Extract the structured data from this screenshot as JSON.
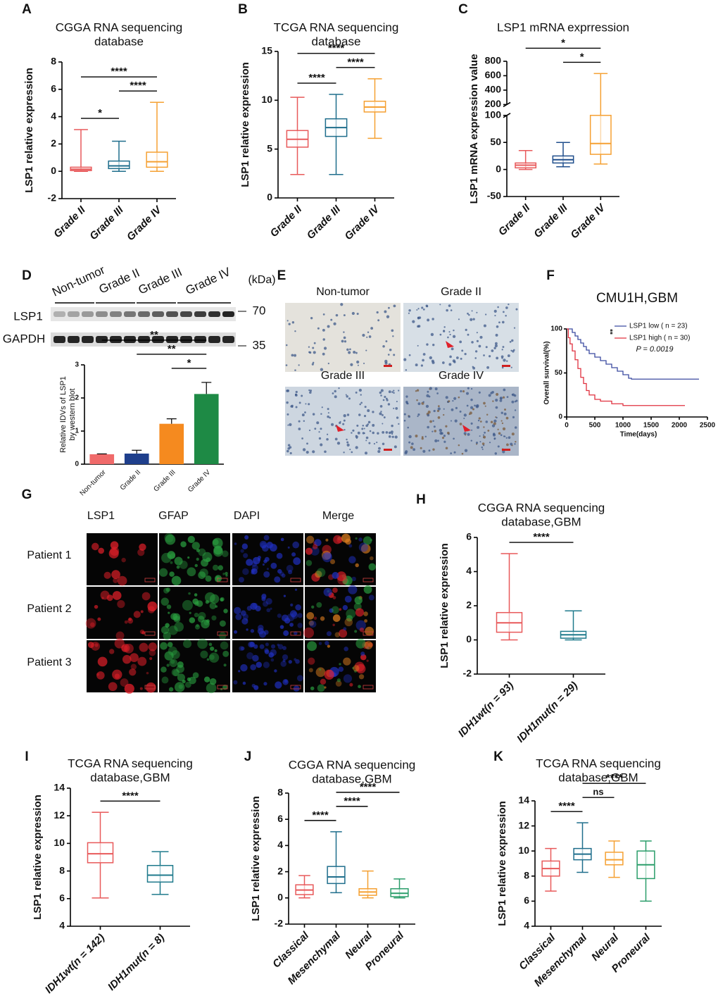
{
  "chart_data": [
    {
      "panel": "A",
      "type": "box",
      "title": [
        "CGGA RNA sequencing",
        "database"
      ],
      "ylabel": "LSP1 relative expression",
      "categories": [
        "Grade II",
        "Grade III",
        "Grade IV"
      ],
      "colors": [
        "#e8595a",
        "#1f6e8c",
        "#f5a032"
      ],
      "boxes": [
        {
          "min": 0,
          "q1": 0.05,
          "median": 0.15,
          "q3": 0.3,
          "max": 3.05
        },
        {
          "min": 0,
          "q1": 0.2,
          "median": 0.4,
          "q3": 0.75,
          "max": 2.2
        },
        {
          "min": 0,
          "q1": 0.3,
          "median": 0.7,
          "q3": 1.4,
          "max": 5.05
        }
      ],
      "ylim": [
        -2,
        8
      ],
      "yticks": [
        -2,
        0,
        2,
        4,
        6,
        8
      ],
      "brackets": [
        {
          "groups": [
            "Grade II",
            "Grade III"
          ],
          "label": "*"
        },
        {
          "groups": [
            "Grade III",
            "Grade IV"
          ],
          "label": "****"
        },
        {
          "groups": [
            "Grade II",
            "Grade IV"
          ],
          "label": "****"
        }
      ]
    },
    {
      "panel": "B",
      "type": "box",
      "title": [
        "TCGA RNA sequencing",
        "database"
      ],
      "ylabel": "LSP1 relative expression",
      "categories": [
        "Grade II",
        "Grade III",
        "Grade IV"
      ],
      "colors": [
        "#e8595a",
        "#1f6e8c",
        "#f5a032"
      ],
      "boxes": [
        {
          "min": 2.4,
          "q1": 5.2,
          "median": 6.0,
          "q3": 6.9,
          "max": 10.3
        },
        {
          "min": 2.4,
          "q1": 6.3,
          "median": 7.2,
          "q3": 8.1,
          "max": 10.6
        },
        {
          "min": 6.1,
          "q1": 8.8,
          "median": 9.3,
          "q3": 9.9,
          "max": 12.2
        }
      ],
      "ylim": [
        0,
        15
      ],
      "yticks": [
        0,
        5,
        10,
        15
      ],
      "brackets": [
        {
          "groups": [
            "Grade II",
            "Grade III"
          ],
          "label": "****"
        },
        {
          "groups": [
            "Grade III",
            "Grade IV"
          ],
          "label": "****"
        },
        {
          "groups": [
            "Grade II",
            "Grade IV"
          ],
          "label": "****"
        }
      ]
    },
    {
      "panel": "C",
      "type": "box",
      "title": [
        "LSP1 mRNA exprression"
      ],
      "ylabel": "LSP1 mRNA expression value",
      "categories": [
        "Grade II",
        "Grade III",
        "Grade IV"
      ],
      "colors": [
        "#e8595a",
        "#1f4e8c",
        "#f5a032"
      ],
      "boxes": [
        {
          "min": 0,
          "q1": 3,
          "median": 8,
          "q3": 12,
          "max": 35
        },
        {
          "min": 5,
          "q1": 12,
          "median": 18,
          "q3": 25,
          "max": 50
        },
        {
          "min": 10,
          "q1": 28,
          "median": 48,
          "q3": 100,
          "max": 630
        }
      ],
      "ylim": [
        -50,
        800
      ],
      "axis_break": [
        100,
        200
      ],
      "yticks": [
        -50,
        0,
        50,
        100,
        200,
        400,
        600,
        800
      ],
      "brackets": [
        {
          "groups": [
            "Grade III",
            "Grade IV"
          ],
          "label": "*"
        },
        {
          "groups": [
            "Grade II",
            "Grade IV"
          ],
          "label": "*"
        }
      ]
    },
    {
      "panel": "D",
      "type": "blot",
      "groups": [
        "Non-tumor",
        "Grade II",
        "Grade III",
        "Grade IV"
      ],
      "unit": "(kDa)",
      "bands": [
        "LSP1",
        "GAPDH"
      ],
      "markers": [
        70,
        35
      ]
    },
    {
      "type": "bar",
      "ylabel": [
        "Relative IDVs of LSP1",
        "by western blot"
      ],
      "categories": [
        "Non-tumor",
        "Grade II",
        "Grade III",
        "Grade IV"
      ],
      "values": [
        0.3,
        0.32,
        1.22,
        2.12
      ],
      "errors": [
        0.01,
        0.1,
        0.15,
        0.35
      ],
      "colors": [
        "#f06a6a",
        "#1f3f8c",
        "#f58a1f",
        "#1e8a45"
      ],
      "ylim": [
        0,
        3
      ],
      "yticks": [
        0,
        1,
        2,
        3
      ],
      "brackets": [
        {
          "groups": [
            "Grade III",
            "Grade IV"
          ],
          "label": "*"
        },
        {
          "groups": [
            "Grade II",
            "Grade IV"
          ],
          "label": "**"
        },
        {
          "groups": [
            "Non-tumor",
            "Grade IV"
          ],
          "label": "**"
        }
      ]
    },
    {
      "panel": "E",
      "type": "ihc",
      "labels": [
        "Non-tumor",
        "Grade II",
        "Grade III",
        "Grade IV"
      ]
    },
    {
      "panel": "F",
      "type": "survival",
      "title": "CMU1H,GBM",
      "xlabel": "Time(days)",
      "ylabel": "Overall survival(%)",
      "series": [
        {
          "name": "LSP1 low ( n = 23)",
          "color": "#3b4aa0",
          "x": [
            0,
            50,
            100,
            150,
            200,
            250,
            300,
            350,
            400,
            500,
            600,
            700,
            800,
            900,
            1000,
            1100,
            1150,
            2350
          ],
          "y": [
            100,
            100,
            96,
            92,
            88,
            84,
            80,
            76,
            72,
            68,
            64,
            60,
            56,
            52,
            48,
            44,
            43,
            43
          ]
        },
        {
          "name": "LSP1 high ( n = 30)",
          "color": "#e0303e",
          "x": [
            0,
            30,
            60,
            100,
            150,
            200,
            250,
            300,
            350,
            400,
            500,
            600,
            800,
            1000,
            1200,
            1500,
            2100
          ],
          "y": [
            100,
            90,
            83,
            75,
            65,
            55,
            45,
            38,
            30,
            25,
            20,
            18,
            15,
            13,
            13,
            13,
            13
          ]
        }
      ],
      "xlim": [
        0,
        2500
      ],
      "xticks": [
        0,
        500,
        1000,
        1500,
        2000,
        2500
      ],
      "ylim": [
        0,
        100
      ],
      "yticks": [
        0,
        50,
        100
      ],
      "significance": "**",
      "pvalue": "P = 0.0019"
    },
    {
      "panel": "G",
      "type": "fluorescence",
      "channels": [
        "LSP1",
        "GFAP",
        "DAPI",
        "Merge"
      ],
      "channel_colors": [
        "#e8202a",
        "#2aa040",
        "#2030c0",
        "#111111"
      ],
      "rows": [
        "Patient 1",
        "Patient 2",
        "Patient 3"
      ]
    },
    {
      "panel": "H",
      "type": "box",
      "title": [
        "CGGA RNA sequencing",
        "database,GBM"
      ],
      "ylabel": "LSP1 relative expression",
      "categories": [
        "IDH1wt(n = 93)",
        "IDH1mut(n = 29)"
      ],
      "colors": [
        "#e8595a",
        "#1f7a8c"
      ],
      "boxes": [
        {
          "min": 0,
          "q1": 0.45,
          "median": 1.0,
          "q3": 1.6,
          "max": 5.05
        },
        {
          "min": 0,
          "q1": 0.1,
          "median": 0.3,
          "q3": 0.5,
          "max": 1.7
        }
      ],
      "ylim": [
        -2,
        6
      ],
      "yticks": [
        -2,
        0,
        2,
        4,
        6
      ],
      "brackets": [
        {
          "groups": [
            "IDH1wt(n = 93)",
            "IDH1mut(n = 29)"
          ],
          "label": "****"
        }
      ]
    },
    {
      "panel": "I",
      "type": "box",
      "title": [
        "TCGA RNA sequencing",
        "database,GBM"
      ],
      "ylabel": "LSP1 relative expression",
      "categories": [
        "IDH1wt(n = 142)",
        "IDH1mut(n = 8)"
      ],
      "colors": [
        "#e8595a",
        "#1f7a8c"
      ],
      "boxes": [
        {
          "min": 6.05,
          "q1": 8.6,
          "median": 9.25,
          "q3": 10.05,
          "max": 12.25
        },
        {
          "min": 6.3,
          "q1": 7.2,
          "median": 7.7,
          "q3": 8.4,
          "max": 9.4
        }
      ],
      "ylim": [
        4,
        14
      ],
      "yticks": [
        4,
        6,
        8,
        10,
        12,
        14
      ],
      "brackets": [
        {
          "groups": [
            "IDH1wt(n = 142)",
            "IDH1mut(n = 8)"
          ],
          "label": "****"
        }
      ]
    },
    {
      "panel": "J",
      "type": "box",
      "title": [
        "CGGA RNA sequencing",
        "database,GBM"
      ],
      "ylabel": "LSP1 relative expression",
      "categories": [
        "Classical",
        "Mesenchymal",
        "Neural",
        "Proneural"
      ],
      "colors": [
        "#e8595a",
        "#1f6e8c",
        "#f5a032",
        "#2a9d6a"
      ],
      "boxes": [
        {
          "min": 0,
          "q1": 0.25,
          "median": 0.6,
          "q3": 1.0,
          "max": 1.7
        },
        {
          "min": 0.4,
          "q1": 1.1,
          "median": 1.6,
          "q3": 2.4,
          "max": 5.05
        },
        {
          "min": 0,
          "q1": 0.2,
          "median": 0.45,
          "q3": 0.7,
          "max": 2.05
        },
        {
          "min": 0,
          "q1": 0.1,
          "median": 0.35,
          "q3": 0.7,
          "max": 1.45
        }
      ],
      "ylim": [
        -2,
        8
      ],
      "yticks": [
        -2,
        0,
        2,
        4,
        6,
        8
      ],
      "brackets": [
        {
          "groups": [
            "Classical",
            "Mesenchymal"
          ],
          "label": "****"
        },
        {
          "groups": [
            "Mesenchymal",
            "Neural"
          ],
          "label": "****"
        },
        {
          "groups": [
            "Mesenchymal",
            "Proneural"
          ],
          "label": "****"
        }
      ]
    },
    {
      "panel": "K",
      "type": "box",
      "title": [
        "TCGA RNA sequencing",
        "database,GBM"
      ],
      "ylabel": "LSP1 relative expression",
      "categories": [
        "Classical",
        "Mesenchymal",
        "Neural",
        "Proneural"
      ],
      "colors": [
        "#e8595a",
        "#1f6e8c",
        "#f5a032",
        "#2a9d6a"
      ],
      "boxes": [
        {
          "min": 6.8,
          "q1": 8.0,
          "median": 8.6,
          "q3": 9.2,
          "max": 10.2
        },
        {
          "min": 8.3,
          "q1": 9.3,
          "median": 9.75,
          "q3": 10.2,
          "max": 12.25
        },
        {
          "min": 7.9,
          "q1": 8.9,
          "median": 9.3,
          "q3": 9.9,
          "max": 10.8
        },
        {
          "min": 6.0,
          "q1": 7.8,
          "median": 8.9,
          "q3": 10.0,
          "max": 10.8
        }
      ],
      "ylim": [
        4,
        14
      ],
      "yticks": [
        4,
        6,
        8,
        10,
        12,
        14
      ],
      "brackets": [
        {
          "groups": [
            "Classical",
            "Mesenchymal"
          ],
          "label": "****"
        },
        {
          "groups": [
            "Mesenchymal",
            "Neural"
          ],
          "label": "ns"
        },
        {
          "groups": [
            "Mesenchymal",
            "Proneural"
          ],
          "label": "****"
        }
      ]
    }
  ]
}
